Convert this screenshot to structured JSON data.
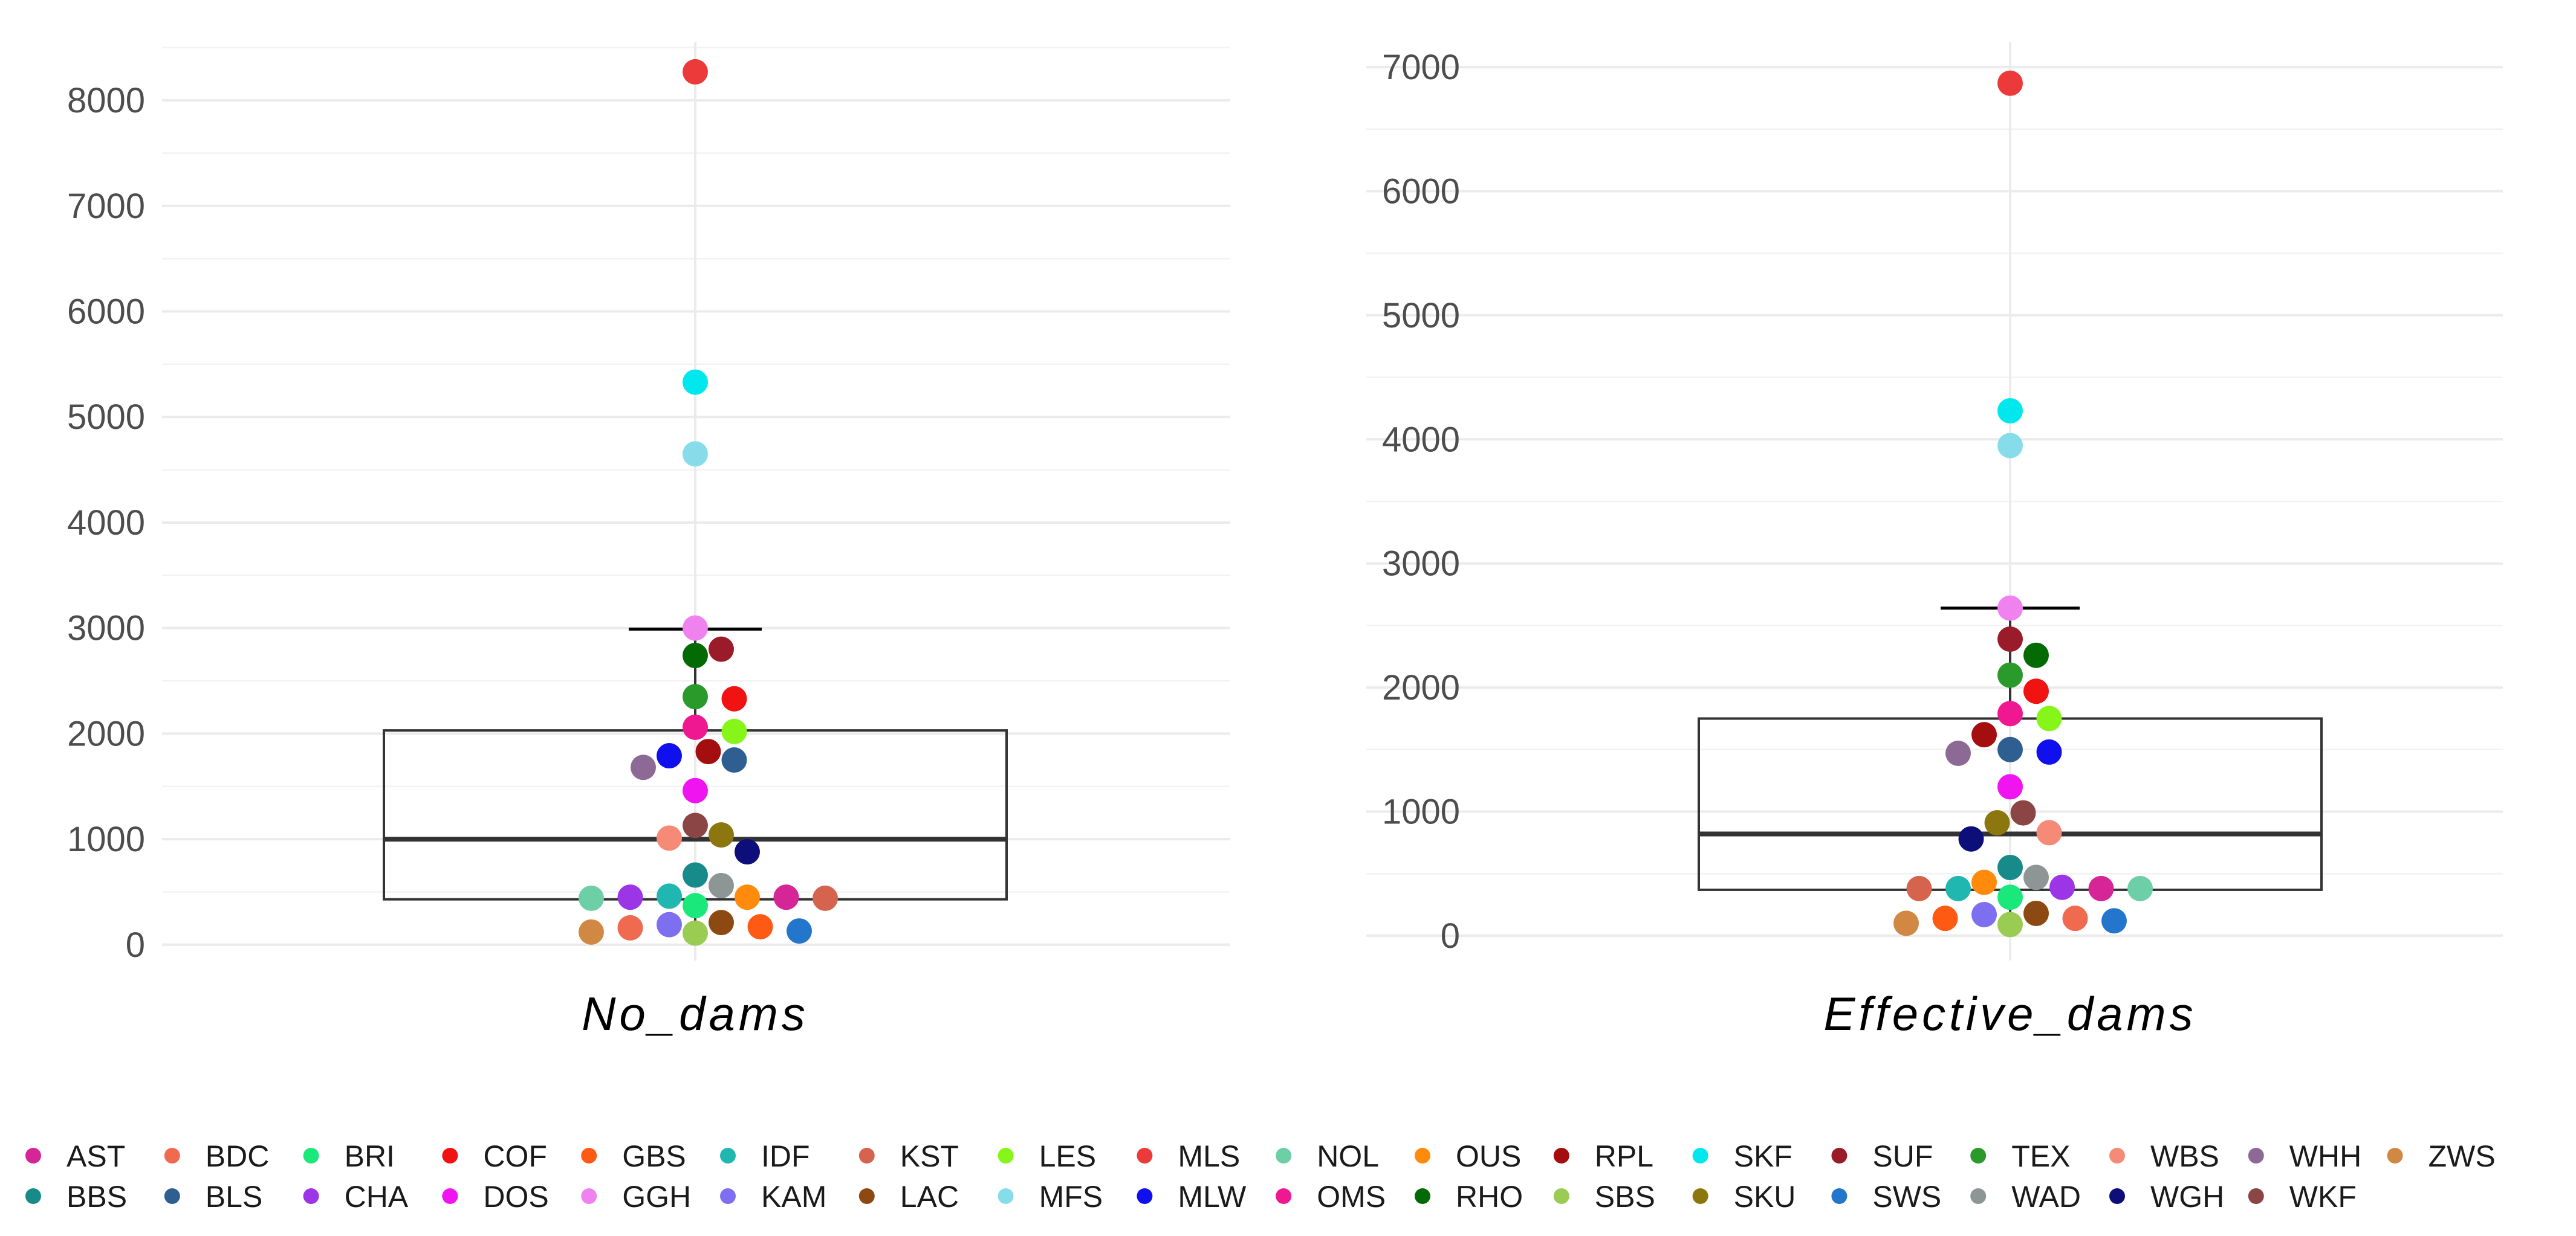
{
  "chart_data": [
    {
      "type": "boxplot",
      "panel_label": "No_dams",
      "ylim": [
        -150,
        8550
      ],
      "yticks": [
        0,
        1000,
        2000,
        3000,
        4000,
        5000,
        6000,
        7000,
        8000
      ],
      "box": {
        "q1": 430,
        "median": 1000,
        "q3": 2030,
        "whisker_low": 100,
        "whisker_high": 2990
      },
      "points": [
        {
          "site": "MLS",
          "value": 8270
        },
        {
          "site": "SKF",
          "value": 5330
        },
        {
          "site": "MFS",
          "value": 4650
        },
        {
          "site": "GGH",
          "value": 3000
        },
        {
          "site": "SUF",
          "value": 2800
        },
        {
          "site": "RHO",
          "value": 2740
        },
        {
          "site": "TEX",
          "value": 2350
        },
        {
          "site": "COF",
          "value": 2330
        },
        {
          "site": "OMS",
          "value": 2060
        },
        {
          "site": "LES",
          "value": 2020
        },
        {
          "site": "RPL",
          "value": 1830
        },
        {
          "site": "MLW",
          "value": 1790
        },
        {
          "site": "BLS",
          "value": 1750
        },
        {
          "site": "WHH",
          "value": 1680
        },
        {
          "site": "DOS",
          "value": 1460
        },
        {
          "site": "WKF",
          "value": 1130
        },
        {
          "site": "SKU",
          "value": 1040
        },
        {
          "site": "WBS",
          "value": 1010
        },
        {
          "site": "WGH",
          "value": 880
        },
        {
          "site": "BBS",
          "value": 660
        },
        {
          "site": "WAD",
          "value": 560
        },
        {
          "site": "IDF",
          "value": 460
        },
        {
          "site": "OUS",
          "value": 450
        },
        {
          "site": "NOL",
          "value": 440
        },
        {
          "site": "KST",
          "value": 440
        },
        {
          "site": "CHA",
          "value": 450
        },
        {
          "site": "AST",
          "value": 450
        },
        {
          "site": "BRI",
          "value": 370
        },
        {
          "site": "LAC",
          "value": 210
        },
        {
          "site": "KAM",
          "value": 190
        },
        {
          "site": "BDC",
          "value": 160
        },
        {
          "site": "GBS",
          "value": 170
        },
        {
          "site": "SWS",
          "value": 130
        },
        {
          "site": "SBS",
          "value": 110
        },
        {
          "site": "ZWS",
          "value": 120
        }
      ]
    },
    {
      "type": "boxplot",
      "panel_label": "Effective_dams",
      "ylim": [
        -200,
        7200
      ],
      "yticks": [
        0,
        1000,
        2000,
        3000,
        4000,
        5000,
        6000,
        7000
      ],
      "box": {
        "q1": 370,
        "median": 820,
        "q3": 1750,
        "whisker_low": 90,
        "whisker_high": 2640
      },
      "points": [
        {
          "site": "MLS",
          "value": 6870
        },
        {
          "site": "SKF",
          "value": 4230
        },
        {
          "site": "MFS",
          "value": 3950
        },
        {
          "site": "GGH",
          "value": 2640
        },
        {
          "site": "SUF",
          "value": 2390
        },
        {
          "site": "RHO",
          "value": 2260
        },
        {
          "site": "TEX",
          "value": 2100
        },
        {
          "site": "COF",
          "value": 1970
        },
        {
          "site": "OMS",
          "value": 1790
        },
        {
          "site": "LES",
          "value": 1750
        },
        {
          "site": "RPL",
          "value": 1620
        },
        {
          "site": "BLS",
          "value": 1500
        },
        {
          "site": "WHH",
          "value": 1470
        },
        {
          "site": "MLW",
          "value": 1480
        },
        {
          "site": "DOS",
          "value": 1200
        },
        {
          "site": "WKF",
          "value": 990
        },
        {
          "site": "SKU",
          "value": 910
        },
        {
          "site": "WBS",
          "value": 830
        },
        {
          "site": "WGH",
          "value": 780
        },
        {
          "site": "BBS",
          "value": 550
        },
        {
          "site": "WAD",
          "value": 470
        },
        {
          "site": "OUS",
          "value": 430
        },
        {
          "site": "IDF",
          "value": 380
        },
        {
          "site": "AST",
          "value": 380
        },
        {
          "site": "KST",
          "value": 380
        },
        {
          "site": "NOL",
          "value": 380
        },
        {
          "site": "CHA",
          "value": 390
        },
        {
          "site": "BRI",
          "value": 310
        },
        {
          "site": "LAC",
          "value": 180
        },
        {
          "site": "KAM",
          "value": 170
        },
        {
          "site": "BDC",
          "value": 140
        },
        {
          "site": "GBS",
          "value": 140
        },
        {
          "site": "SWS",
          "value": 120
        },
        {
          "site": "SBS",
          "value": 90
        },
        {
          "site": "ZWS",
          "value": 100
        }
      ]
    }
  ],
  "legend": {
    "rows": [
      [
        "AST",
        "BDC",
        "BRI",
        "COF",
        "GBS",
        "IDF",
        "KST",
        "LES",
        "MLS",
        "NOL",
        "OUS",
        "RPL",
        "SKF",
        "SUF",
        "TEX",
        "WBS",
        "WHH",
        "ZWS"
      ],
      [
        "BBS",
        "BLS",
        "CHA",
        "DOS",
        "GGH",
        "KAM",
        "LAC",
        "MFS",
        "MLW",
        "OMS",
        "RHO",
        "SBS",
        "SKU",
        "SWS",
        "WAD",
        "WGH",
        "WKF"
      ]
    ]
  },
  "colors": {
    "AST": "#d62596",
    "BDC": "#ef6a4e",
    "BRI": "#1ae87a",
    "COF": "#f11212",
    "GBS": "#ff5a14",
    "IDF": "#21b7b1",
    "KST": "#d5634e",
    "LES": "#85f51a",
    "MLS": "#ec3a3a",
    "NOL": "#6ccfa6",
    "OUS": "#ff8a0c",
    "RPL": "#a50e0e",
    "SKF": "#00e8ee",
    "SUF": "#9a1c2a",
    "TEX": "#2a9a2a",
    "WBS": "#f58a76",
    "WHH": "#8d6a96",
    "ZWS": "#d08842",
    "BBS": "#178a8a",
    "BLS": "#2f5f91",
    "CHA": "#9b35e6",
    "DOS": "#f014f0",
    "GGH": "#ef82ef",
    "KAM": "#7d6ff0",
    "LAC": "#8c4a12",
    "MFS": "#86dde9",
    "MLW": "#1010ee",
    "OMS": "#f01890",
    "RHO": "#046a04",
    "SBS": "#9acb52",
    "SKU": "#8c760e",
    "SWS": "#2376cc",
    "WAD": "#8d9595",
    "WGH": "#0e0e7a",
    "WKF": "#8c4545",
    "box_stroke": "#333333",
    "grid": "#ebebeb",
    "axis_text": "#4d4d4d"
  }
}
